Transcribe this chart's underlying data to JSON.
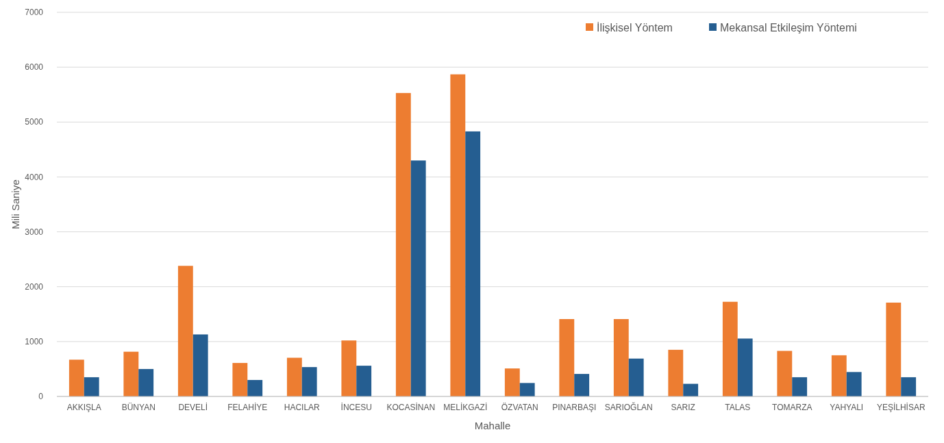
{
  "chart_data": {
    "type": "bar",
    "xlabel": "Mahalle",
    "ylabel": "Mili Saniye",
    "categories": [
      "AKKIŞLA",
      "BÜNYAN",
      "DEVELİ",
      "FELAHİYE",
      "HACILAR",
      "İNCESU",
      "KOCASİNAN",
      "MELİKGAZİ",
      "ÖZVATAN",
      "PINARBAŞI",
      "SARIOĞLAN",
      "SARIZ",
      "TALAS",
      "TOMARZA",
      "YAHYALI",
      "YEŞİLHİSAR"
    ],
    "series": [
      {
        "name": "İlişkisel Yöntem",
        "color": "#ed7d31",
        "values": [
          670,
          815,
          2380,
          610,
          705,
          1020,
          5530,
          5870,
          510,
          1410,
          1410,
          850,
          1725,
          830,
          750,
          1710
        ]
      },
      {
        "name": "Mekansal Etkileşim Yöntemi",
        "color": "#255e91",
        "values": [
          350,
          500,
          1130,
          300,
          535,
          560,
          4300,
          4830,
          245,
          410,
          690,
          230,
          1055,
          350,
          445,
          350
        ]
      }
    ],
    "ylim": [
      0,
      7000
    ],
    "yticks": [
      0,
      1000,
      2000,
      3000,
      4000,
      5000,
      6000,
      7000
    ],
    "grid": "y",
    "legend": "top right"
  }
}
